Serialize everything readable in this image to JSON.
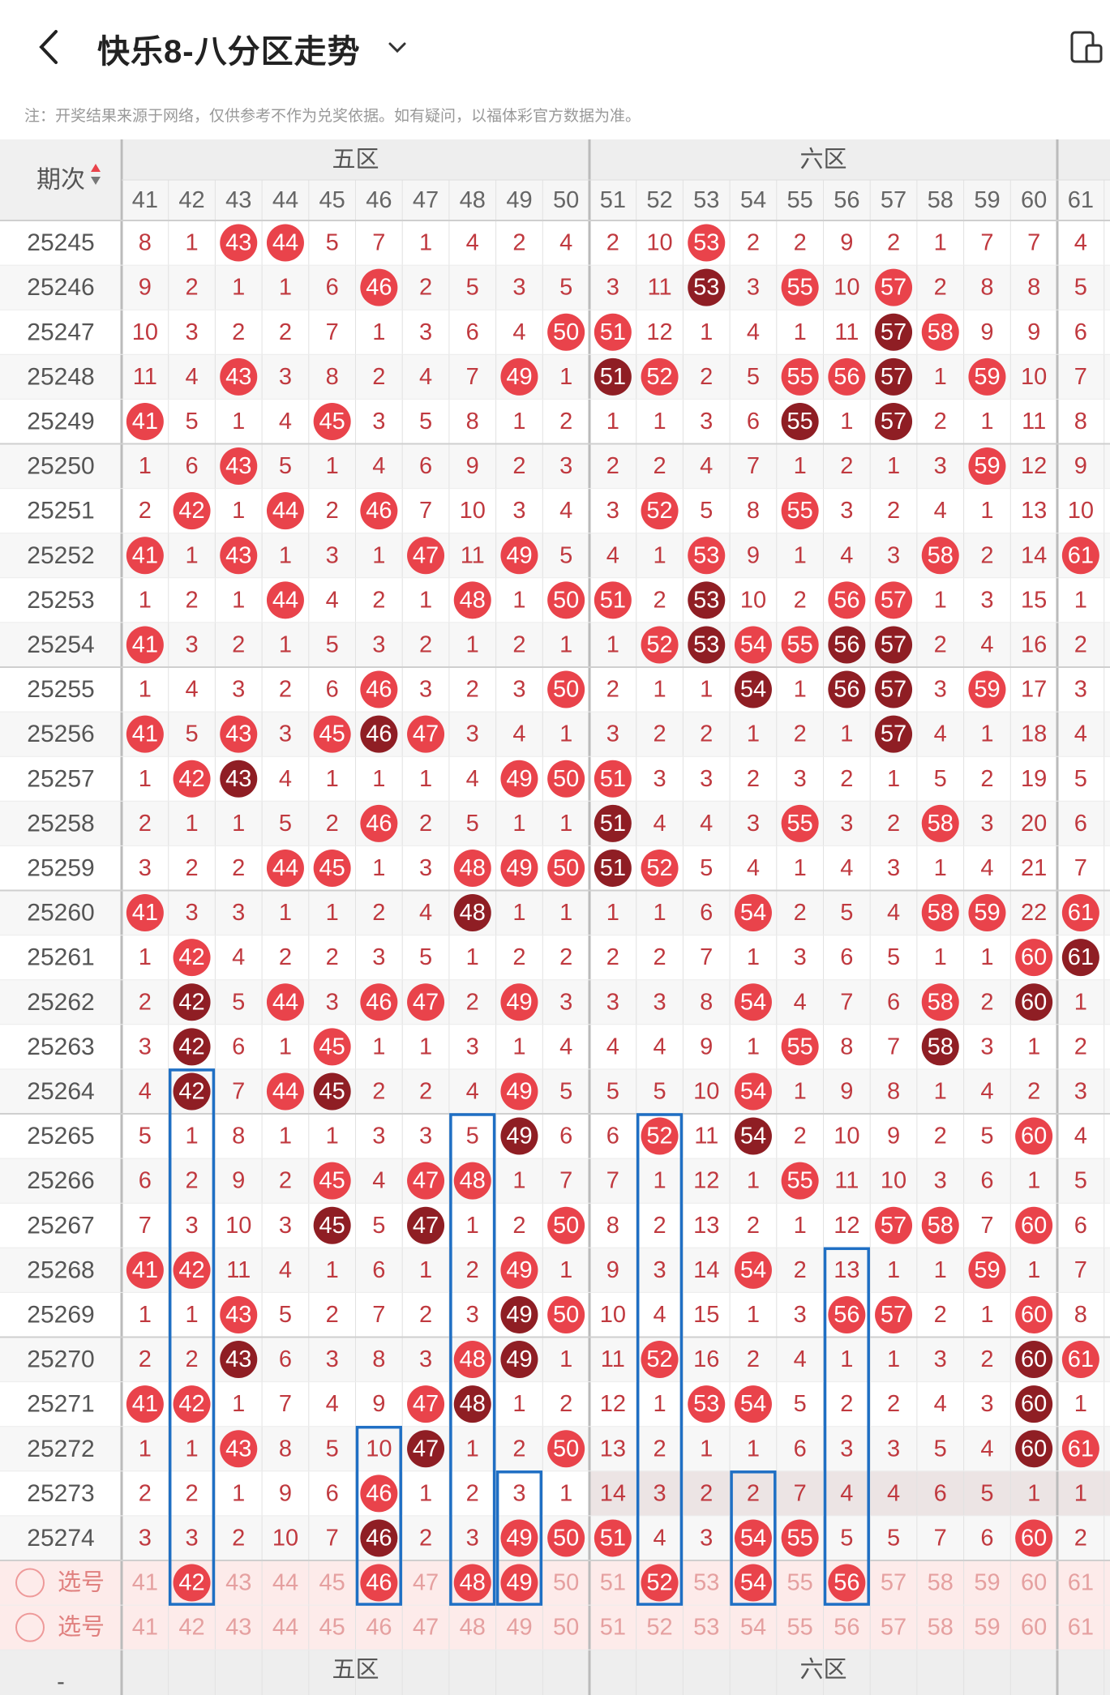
{
  "header": {
    "title": "快乐8-八分区走势"
  },
  "note": "注：开奖结果来源于网络，仅供参考不作为兑奖依据。如有疑问，以福体彩官方数据为准。",
  "table": {
    "period_header": "期次",
    "zones": [
      {
        "name": "五区"
      },
      {
        "name": "六区"
      }
    ],
    "columns": [
      "41",
      "42",
      "43",
      "44",
      "45",
      "46",
      "47",
      "48",
      "49",
      "50",
      "51",
      "52",
      "53",
      "54",
      "55",
      "56",
      "57",
      "58",
      "59",
      "60",
      "61"
    ],
    "rows": [
      {
        "period": "25245",
        "cells": [
          "8",
          "1",
          "43",
          "44",
          "5",
          "7",
          "1",
          "4",
          "2",
          "4",
          "2",
          "10",
          "53",
          "2",
          "2",
          "9",
          "2",
          "1",
          "7",
          "7",
          "4"
        ]
      },
      {
        "period": "25246",
        "cells": [
          "9",
          "2",
          "1",
          "1",
          "6",
          "46",
          "2",
          "5",
          "3",
          "5",
          "3",
          "11",
          "53",
          "3",
          "55",
          "10",
          "57",
          "2",
          "8",
          "8",
          "5"
        ]
      },
      {
        "period": "25247",
        "cells": [
          "10",
          "3",
          "2",
          "2",
          "7",
          "1",
          "3",
          "6",
          "4",
          "50",
          "51",
          "12",
          "1",
          "4",
          "1",
          "11",
          "57",
          "58",
          "9",
          "9",
          "6"
        ]
      },
      {
        "period": "25248",
        "cells": [
          "11",
          "4",
          "43",
          "3",
          "8",
          "2",
          "4",
          "7",
          "49",
          "1",
          "51",
          "52",
          "2",
          "5",
          "55",
          "56",
          "57",
          "1",
          "59",
          "10",
          "7"
        ]
      },
      {
        "period": "25249",
        "cells": [
          "41",
          "5",
          "1",
          "4",
          "45",
          "3",
          "5",
          "8",
          "1",
          "2",
          "1",
          "1",
          "3",
          "6",
          "55",
          "1",
          "57",
          "2",
          "1",
          "11",
          "8"
        ]
      },
      {
        "period": "25250",
        "cells": [
          "1",
          "6",
          "43",
          "5",
          "1",
          "4",
          "6",
          "9",
          "2",
          "3",
          "2",
          "2",
          "4",
          "7",
          "1",
          "2",
          "1",
          "3",
          "59",
          "12",
          "9"
        ]
      },
      {
        "period": "25251",
        "cells": [
          "2",
          "42",
          "1",
          "44",
          "2",
          "46",
          "7",
          "10",
          "3",
          "4",
          "3",
          "52",
          "5",
          "8",
          "55",
          "3",
          "2",
          "4",
          "1",
          "13",
          "10"
        ]
      },
      {
        "period": "25252",
        "cells": [
          "41",
          "1",
          "43",
          "1",
          "3",
          "1",
          "47",
          "11",
          "49",
          "5",
          "4",
          "1",
          "53",
          "9",
          "1",
          "4",
          "3",
          "58",
          "2",
          "14",
          "61"
        ]
      },
      {
        "period": "25253",
        "cells": [
          "1",
          "2",
          "1",
          "44",
          "4",
          "2",
          "1",
          "48",
          "1",
          "50",
          "51",
          "2",
          "53",
          "10",
          "2",
          "56",
          "57",
          "1",
          "3",
          "15",
          "1"
        ]
      },
      {
        "period": "25254",
        "cells": [
          "41",
          "3",
          "2",
          "1",
          "5",
          "3",
          "2",
          "1",
          "2",
          "1",
          "1",
          "52",
          "53",
          "54",
          "55",
          "56",
          "57",
          "2",
          "4",
          "16",
          "2"
        ]
      },
      {
        "period": "25255",
        "cells": [
          "1",
          "4",
          "3",
          "2",
          "6",
          "46",
          "3",
          "2",
          "3",
          "50",
          "2",
          "1",
          "1",
          "54",
          "1",
          "56",
          "57",
          "3",
          "59",
          "17",
          "3"
        ]
      },
      {
        "period": "25256",
        "cells": [
          "41",
          "5",
          "43",
          "3",
          "45",
          "46",
          "47",
          "3",
          "4",
          "1",
          "3",
          "2",
          "2",
          "1",
          "2",
          "1",
          "57",
          "4",
          "1",
          "18",
          "4"
        ]
      },
      {
        "period": "25257",
        "cells": [
          "1",
          "42",
          "43",
          "4",
          "1",
          "1",
          "1",
          "4",
          "49",
          "50",
          "51",
          "3",
          "3",
          "2",
          "3",
          "2",
          "1",
          "5",
          "2",
          "19",
          "5"
        ]
      },
      {
        "period": "25258",
        "cells": [
          "2",
          "1",
          "1",
          "5",
          "2",
          "46",
          "2",
          "5",
          "1",
          "1",
          "51",
          "4",
          "4",
          "3",
          "55",
          "3",
          "2",
          "58",
          "3",
          "20",
          "6"
        ]
      },
      {
        "period": "25259",
        "cells": [
          "3",
          "2",
          "2",
          "44",
          "45",
          "1",
          "3",
          "48",
          "49",
          "50",
          "51",
          "52",
          "5",
          "4",
          "1",
          "4",
          "3",
          "1",
          "4",
          "21",
          "7"
        ]
      },
      {
        "period": "25260",
        "cells": [
          "41",
          "3",
          "3",
          "1",
          "1",
          "2",
          "4",
          "48",
          "1",
          "1",
          "1",
          "1",
          "6",
          "54",
          "2",
          "5",
          "4",
          "58",
          "59",
          "22",
          "61"
        ]
      },
      {
        "period": "25261",
        "cells": [
          "1",
          "42",
          "4",
          "2",
          "2",
          "3",
          "5",
          "1",
          "2",
          "2",
          "2",
          "2",
          "7",
          "1",
          "3",
          "6",
          "5",
          "1",
          "1",
          "60",
          "61"
        ]
      },
      {
        "period": "25262",
        "cells": [
          "2",
          "42",
          "5",
          "44",
          "3",
          "46",
          "47",
          "2",
          "49",
          "3",
          "3",
          "3",
          "8",
          "54",
          "4",
          "7",
          "6",
          "58",
          "2",
          "60",
          "1"
        ]
      },
      {
        "period": "25263",
        "cells": [
          "3",
          "42",
          "6",
          "1",
          "45",
          "1",
          "1",
          "3",
          "1",
          "4",
          "4",
          "4",
          "9",
          "1",
          "55",
          "8",
          "7",
          "58",
          "3",
          "1",
          "2"
        ]
      },
      {
        "period": "25264",
        "cells": [
          "4",
          "42",
          "7",
          "44",
          "45",
          "2",
          "2",
          "4",
          "49",
          "5",
          "5",
          "5",
          "10",
          "54",
          "1",
          "9",
          "8",
          "1",
          "4",
          "2",
          "3"
        ]
      },
      {
        "period": "25265",
        "cells": [
          "5",
          "1",
          "8",
          "1",
          "1",
          "3",
          "3",
          "5",
          "49",
          "6",
          "6",
          "52",
          "11",
          "54",
          "2",
          "10",
          "9",
          "2",
          "5",
          "60",
          "4"
        ]
      },
      {
        "period": "25266",
        "cells": [
          "6",
          "2",
          "9",
          "2",
          "45",
          "4",
          "47",
          "48",
          "1",
          "7",
          "7",
          "1",
          "12",
          "1",
          "55",
          "11",
          "10",
          "3",
          "6",
          "1",
          "5"
        ]
      },
      {
        "period": "25267",
        "cells": [
          "7",
          "3",
          "10",
          "3",
          "45",
          "5",
          "47",
          "1",
          "2",
          "50",
          "8",
          "2",
          "13",
          "2",
          "1",
          "12",
          "57",
          "58",
          "7",
          "60",
          "6"
        ]
      },
      {
        "period": "25268",
        "cells": [
          "41",
          "42",
          "11",
          "4",
          "1",
          "6",
          "1",
          "2",
          "49",
          "1",
          "9",
          "3",
          "14",
          "54",
          "2",
          "13",
          "1",
          "1",
          "59",
          "1",
          "7"
        ]
      },
      {
        "period": "25269",
        "cells": [
          "1",
          "1",
          "43",
          "5",
          "2",
          "7",
          "2",
          "3",
          "49",
          "50",
          "10",
          "4",
          "15",
          "1",
          "3",
          "56",
          "57",
          "2",
          "1",
          "60",
          "8"
        ]
      },
      {
        "period": "25270",
        "cells": [
          "2",
          "2",
          "43",
          "6",
          "3",
          "8",
          "3",
          "48",
          "49",
          "1",
          "11",
          "52",
          "16",
          "2",
          "4",
          "1",
          "1",
          "3",
          "2",
          "60",
          "61"
        ]
      },
      {
        "period": "25271",
        "cells": [
          "41",
          "42",
          "1",
          "7",
          "4",
          "9",
          "47",
          "48",
          "1",
          "2",
          "12",
          "1",
          "53",
          "54",
          "5",
          "2",
          "2",
          "4",
          "3",
          "60",
          "1"
        ]
      },
      {
        "period": "25272",
        "cells": [
          "1",
          "1",
          "43",
          "8",
          "5",
          "10",
          "47",
          "1",
          "2",
          "50",
          "13",
          "2",
          "1",
          "1",
          "6",
          "3",
          "3",
          "5",
          "4",
          "60",
          "61"
        ]
      },
      {
        "period": "25273",
        "cells": [
          "2",
          "2",
          "1",
          "9",
          "6",
          "46",
          "1",
          "2",
          "3",
          "1",
          "14",
          "3",
          "2",
          "2",
          "7",
          "4",
          "4",
          "6",
          "5",
          "1",
          "1"
        ]
      },
      {
        "period": "25274",
        "cells": [
          "3",
          "3",
          "2",
          "10",
          "7",
          "46",
          "2",
          "3",
          "49",
          "50",
          "51",
          "4",
          "3",
          "54",
          "55",
          "5",
          "5",
          "7",
          "6",
          "60",
          "2"
        ]
      }
    ],
    "select_rows": [
      {
        "label": "选号",
        "cells": [
          "41",
          "42",
          "43",
          "44",
          "45",
          "46",
          "47",
          "48",
          "49",
          "50",
          "51",
          "52",
          "53",
          "54",
          "55",
          "56",
          "57",
          "58",
          "59",
          "60",
          "61"
        ]
      },
      {
        "label": "选号",
        "cells": [
          "41",
          "42",
          "43",
          "44",
          "45",
          "46",
          "47",
          "48",
          "49",
          "50",
          "51",
          "52",
          "53",
          "54",
          "55",
          "56",
          "57",
          "58",
          "59",
          "60",
          "61"
        ]
      }
    ],
    "footer_zones": [
      {
        "name": "五区"
      },
      {
        "name": "六区"
      }
    ],
    "footer_period": "-"
  },
  "colors": {
    "hit": "#e9434b",
    "consec": "#8f1e24",
    "box": "#1f6fc4",
    "miss": "#c0393f",
    "sel_text": "#e5a0a0"
  }
}
